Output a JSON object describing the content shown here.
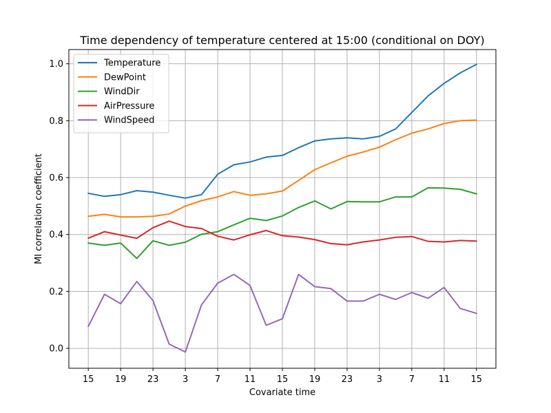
{
  "chart_data": {
    "type": "line",
    "title": "Time dependency of temperature centered at 15:00 (conditional on DOY)",
    "xlabel": "Covariate time",
    "ylabel": "MI correlation coefficient",
    "x_tick_labels": [
      "15",
      "19",
      "23",
      "3",
      "7",
      "11",
      "15",
      "19",
      "23",
      "3",
      "7",
      "11",
      "15"
    ],
    "x_tick_positions": [
      0,
      2,
      4,
      6,
      8,
      10,
      12,
      14,
      16,
      18,
      20,
      22,
      24
    ],
    "xlim": [
      -1.2,
      25.2
    ],
    "ylim": [
      -0.07,
      1.05
    ],
    "y_ticks": [
      0.0,
      0.2,
      0.4,
      0.6,
      0.8,
      1.0
    ],
    "y_tick_labels": [
      "0.0",
      "0.2",
      "0.4",
      "0.6",
      "0.8",
      "1.0"
    ],
    "grid": true,
    "legend_position": "top-left",
    "x": [
      0,
      1,
      2,
      3,
      4,
      5,
      6,
      7,
      8,
      9,
      10,
      11,
      12,
      13,
      14,
      15,
      16,
      17,
      18,
      19,
      20,
      21,
      22,
      23,
      24
    ],
    "series": [
      {
        "name": "Temperature",
        "color": "#1f77b4",
        "values": [
          0.545,
          0.534,
          0.54,
          0.554,
          0.549,
          0.538,
          0.528,
          0.54,
          0.612,
          0.645,
          0.655,
          0.672,
          0.678,
          0.705,
          0.729,
          0.736,
          0.74,
          0.736,
          0.745,
          0.771,
          0.829,
          0.887,
          0.931,
          0.968,
          0.998
        ]
      },
      {
        "name": "DewPoint",
        "color": "#ff7f0e",
        "values": [
          0.464,
          0.471,
          0.462,
          0.462,
          0.464,
          0.472,
          0.5,
          0.519,
          0.532,
          0.551,
          0.538,
          0.543,
          0.553,
          0.59,
          0.628,
          0.652,
          0.675,
          0.69,
          0.707,
          0.733,
          0.756,
          0.771,
          0.79,
          0.8,
          0.802
        ]
      },
      {
        "name": "WindDir",
        "color": "#2ca02c",
        "values": [
          0.37,
          0.362,
          0.37,
          0.316,
          0.378,
          0.362,
          0.373,
          0.401,
          0.41,
          0.434,
          0.457,
          0.449,
          0.465,
          0.495,
          0.518,
          0.49,
          0.516,
          0.515,
          0.515,
          0.532,
          0.532,
          0.564,
          0.563,
          0.559,
          0.543
        ]
      },
      {
        "name": "AirPressure",
        "color": "#d62728",
        "values": [
          0.387,
          0.41,
          0.398,
          0.387,
          0.424,
          0.447,
          0.428,
          0.421,
          0.394,
          0.381,
          0.399,
          0.414,
          0.396,
          0.391,
          0.382,
          0.368,
          0.364,
          0.374,
          0.381,
          0.39,
          0.393,
          0.376,
          0.374,
          0.379,
          0.377
        ]
      },
      {
        "name": "WindSpeed",
        "color": "#9467bd",
        "values": [
          0.077,
          0.19,
          0.157,
          0.235,
          0.168,
          0.015,
          -0.013,
          0.153,
          0.229,
          0.26,
          0.221,
          0.081,
          0.104,
          0.26,
          0.217,
          0.21,
          0.166,
          0.166,
          0.19,
          0.172,
          0.196,
          0.176,
          0.214,
          0.14,
          0.123
        ]
      }
    ]
  }
}
